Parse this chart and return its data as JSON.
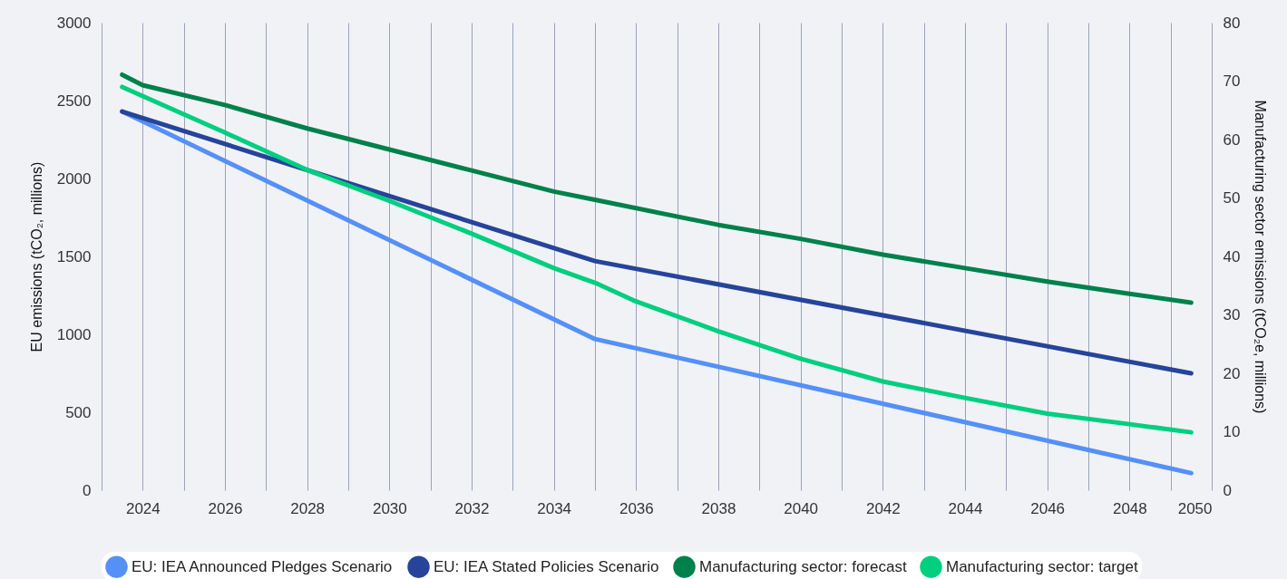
{
  "chart_data": {
    "type": "line",
    "xlabel": null,
    "ylabel": "EU emissions (tCO₂, millions)",
    "y2label": "Manufacturing sector emissions (tCO₂e, millions)",
    "xlim": [
      2023,
      2050
    ],
    "xticks": [
      {
        "value": 2023,
        "label": null
      },
      2024,
      {
        "value": 2025,
        "label": null
      },
      2026,
      {
        "value": 2027,
        "label": null
      },
      2028,
      {
        "value": 2029,
        "label": null
      },
      2030,
      {
        "value": 2031,
        "label": null
      },
      2032,
      {
        "value": 2033,
        "label": null
      },
      2034,
      {
        "value": 2035,
        "label": null
      },
      2036,
      {
        "value": 2037,
        "label": null
      },
      2038,
      {
        "value": 2039,
        "label": null
      },
      2040,
      {
        "value": 2041,
        "label": null
      },
      2042,
      {
        "value": 2043,
        "label": null
      },
      2044,
      {
        "value": 2045,
        "label": null
      },
      2046,
      {
        "value": 2047,
        "label": null
      },
      2048,
      {
        "value": 2049,
        "label": null
      },
      2050
    ],
    "ylim": [
      0,
      3000
    ],
    "yticks": [
      0,
      500,
      1000,
      1500,
      2000,
      2500,
      3000
    ],
    "y2lim": [
      0,
      80
    ],
    "y2ticks": [
      0,
      10,
      20,
      30,
      40,
      50,
      60,
      70,
      80
    ],
    "grid": "x",
    "legend": "bottom",
    "marker": "none",
    "series": [
      {
        "name": "EU: IEA Announced Pledges Scenario",
        "color": "#5590f7",
        "x": [
          2023.5,
          2035,
          2049.5
        ],
        "values": [
          2430,
          970,
          110
        ]
      },
      {
        "name": "EU: IEA Stated Policies Scenario",
        "color": "#26449a",
        "x": [
          2023.5,
          2035,
          2049.5
        ],
        "values": [
          2430,
          1470,
          750
        ]
      },
      {
        "name": "Manufacturing sector: forecast",
        "color": "#00814b",
        "axis": "y2",
        "x": [
          2023.5,
          2024,
          2026,
          2028,
          2030,
          2032,
          2034,
          2035,
          2038,
          2040,
          2042,
          2044,
          2046,
          2048,
          2049.5
        ],
        "values": [
          71.1,
          69.3,
          65.9,
          61.9,
          58.3,
          54.7,
          51.1,
          49.7,
          45.4,
          43.0,
          40.3,
          38.0,
          35.7,
          33.6,
          32.1
        ]
      },
      {
        "name": "Manufacturing sector: target",
        "color": "#00cf7f",
        "axis": "y2",
        "x": [
          2023.5,
          2026,
          2028,
          2030,
          2032,
          2034,
          2035,
          2036,
          2038,
          2040,
          2042,
          2044,
          2046,
          2048,
          2049.5
        ],
        "values": [
          69.0,
          61.2,
          54.8,
          49.5,
          43.9,
          38.0,
          35.5,
          32.3,
          27.2,
          22.5,
          18.6,
          15.8,
          13.1,
          11.3,
          9.9
        ]
      }
    ]
  }
}
